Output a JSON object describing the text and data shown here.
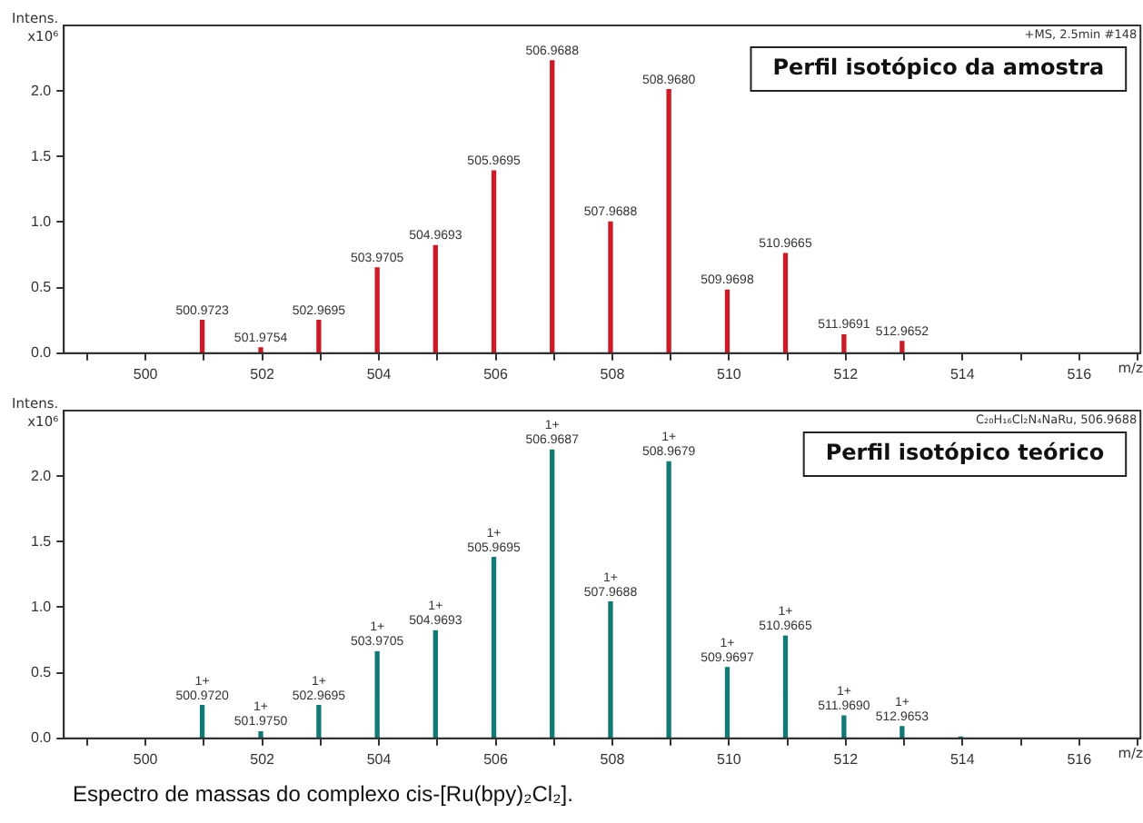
{
  "chart_data": [
    {
      "type": "bar",
      "title": "Perfil isotópico da amostra",
      "xlabel": "m/z",
      "ylabel": "Intens.\nx10⁶",
      "color": "#cc1a26",
      "annotations": [
        "+MS, 2.5min #148",
        {
          "text": "500.9723",
          "x": 500.9723,
          "y": 0.25
        },
        {
          "text": "501.9754",
          "x": 501.9754,
          "y": 0.04
        },
        {
          "text": "502.9695",
          "x": 502.9695,
          "y": 0.25
        },
        {
          "text": "503.9705",
          "x": 503.9705,
          "y": 0.65
        },
        {
          "text": "504.9693",
          "x": 504.9693,
          "y": 0.82
        },
        {
          "text": "505.9695",
          "x": 505.9695,
          "y": 1.39
        },
        {
          "text": "506.9688",
          "x": 506.9688,
          "y": 2.23
        },
        {
          "text": "507.9688",
          "x": 507.9688,
          "y": 1.0
        },
        {
          "text": "508.9680",
          "x": 508.968,
          "y": 2.01
        },
        {
          "text": "509.9698",
          "x": 509.9698,
          "y": 0.48
        },
        {
          "text": "510.9665",
          "x": 510.9665,
          "y": 0.76
        },
        {
          "text": "511.9691",
          "x": 511.9691,
          "y": 0.14
        },
        {
          "text": "512.9652",
          "x": 512.9652,
          "y": 0.09
        }
      ],
      "x": [
        500.9723,
        501.9754,
        502.9695,
        503.9705,
        504.9693,
        505.9695,
        506.9688,
        507.9688,
        508.968,
        509.9698,
        510.9665,
        511.9691,
        512.9652
      ],
      "values": [
        0.25,
        0.04,
        0.25,
        0.65,
        0.82,
        1.39,
        2.23,
        1.0,
        2.01,
        0.48,
        0.76,
        0.14,
        0.09
      ],
      "xlim": [
        498.6,
        517.05
      ],
      "ylim": [
        0,
        2.5
      ],
      "xticks": [
        {
          "value": 499,
          "label": null
        },
        500,
        {
          "value": 501,
          "label": null
        },
        502,
        {
          "value": 503,
          "label": null
        },
        504,
        {
          "value": 505,
          "label": null
        },
        506,
        {
          "value": 507,
          "label": null
        },
        508,
        {
          "value": 509,
          "label": null
        },
        510,
        {
          "value": 511,
          "label": null
        },
        512,
        {
          "value": 513,
          "label": null
        },
        514,
        {
          "value": 515,
          "label": null
        },
        516,
        {
          "value": 517,
          "label": null
        }
      ],
      "yticks": [
        {
          "value": 0,
          "label": "0.0"
        },
        {
          "value": 0.5,
          "label": "0.5"
        },
        {
          "value": 1,
          "label": "1.0"
        },
        {
          "value": 1.5,
          "label": "1.5"
        },
        {
          "value": 2,
          "label": "2.0"
        }
      ],
      "grid": false
    },
    {
      "type": "bar",
      "title": "Perfil isotópico teórico",
      "xlabel": "m/z",
      "ylabel": "Intens.\nx10⁶",
      "color": "#127a74",
      "annotations": [
        "C₂₀H₁₆Cl₂N₄NaRu, 506.9688",
        "Espectro de massas do complexo cis-[Ru(bpy)₂Cl₂].",
        {
          "text": "1+",
          "x": 500.972,
          "y": 0.25
        },
        {
          "text": "500.9720",
          "x": 500.972,
          "y": 0.25
        },
        {
          "text": "1+",
          "x": 501.975,
          "y": 0.05
        },
        {
          "text": "501.9750",
          "x": 501.975,
          "y": 0.05
        },
        {
          "text": "1+",
          "x": 502.9695,
          "y": 0.25
        },
        {
          "text": "502.9695",
          "x": 502.9695,
          "y": 0.25
        },
        {
          "text": "1+",
          "x": 503.9705,
          "y": 0.66
        },
        {
          "text": "503.9705",
          "x": 503.9705,
          "y": 0.66
        },
        {
          "text": "1+",
          "x": 504.9693,
          "y": 0.82
        },
        {
          "text": "504.9693",
          "x": 504.9693,
          "y": 0.82
        },
        {
          "text": "1+",
          "x": 505.9695,
          "y": 1.38
        },
        {
          "text": "505.9695",
          "x": 505.9695,
          "y": 1.38
        },
        {
          "text": "1+",
          "x": 506.9687,
          "y": 2.2
        },
        {
          "text": "506.9687",
          "x": 506.9687,
          "y": 2.2
        },
        {
          "text": "1+",
          "x": 507.9688,
          "y": 1.04
        },
        {
          "text": "507.9688",
          "x": 507.9688,
          "y": 1.04
        },
        {
          "text": "1+",
          "x": 508.9679,
          "y": 2.11
        },
        {
          "text": "508.9679",
          "x": 508.9679,
          "y": 2.11
        },
        {
          "text": "1+",
          "x": 509.9697,
          "y": 0.54
        },
        {
          "text": "509.9697",
          "x": 509.9697,
          "y": 0.54
        },
        {
          "text": "1+",
          "x": 510.9665,
          "y": 0.78
        },
        {
          "text": "510.9665",
          "x": 510.9665,
          "y": 0.78
        },
        {
          "text": "1+",
          "x": 511.969,
          "y": 0.17
        },
        {
          "text": "511.9690",
          "x": 511.969,
          "y": 0.17
        },
        {
          "text": "1+",
          "x": 512.9653,
          "y": 0.09
        },
        {
          "text": "512.9653",
          "x": 512.9653,
          "y": 0.09
        }
      ],
      "x": [
        500.972,
        501.975,
        502.9695,
        503.9705,
        504.9693,
        505.9695,
        506.9687,
        507.9688,
        508.9679,
        509.9697,
        510.9665,
        511.969,
        512.9653,
        513.97
      ],
      "values": [
        0.25,
        0.05,
        0.25,
        0.66,
        0.82,
        1.38,
        2.2,
        1.04,
        2.11,
        0.54,
        0.78,
        0.17,
        0.09,
        0.01
      ],
      "xlim": [
        498.6,
        517.05
      ],
      "ylim": [
        0,
        2.5
      ],
      "xticks": [
        {
          "value": 499,
          "label": null
        },
        500,
        {
          "value": 501,
          "label": null
        },
        502,
        {
          "value": 503,
          "label": null
        },
        504,
        {
          "value": 505,
          "label": null
        },
        506,
        {
          "value": 507,
          "label": null
        },
        508,
        {
          "value": 509,
          "label": null
        },
        510,
        {
          "value": 511,
          "label": null
        },
        512,
        {
          "value": 513,
          "label": null
        },
        514,
        {
          "value": 515,
          "label": null
        },
        516,
        {
          "value": 517,
          "label": null
        }
      ],
      "yticks": [
        {
          "value": 0,
          "label": "0.0"
        },
        {
          "value": 0.5,
          "label": "0.5"
        },
        {
          "value": 1,
          "label": "1.0"
        },
        {
          "value": 1.5,
          "label": "1.5"
        },
        {
          "value": 2,
          "label": "2.0"
        }
      ],
      "grid": false
    }
  ]
}
